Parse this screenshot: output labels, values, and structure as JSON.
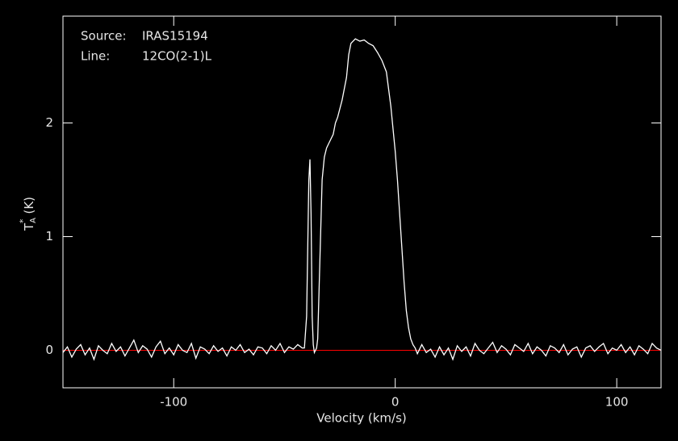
{
  "chart_data": {
    "type": "line",
    "source_label": "Source:",
    "source": "IRAS15194",
    "line_label": "Line:",
    "line": "12CO(2-1)L",
    "xlabel": "Velocity (km/s)",
    "ylabel": {
      "symbol": "T",
      "subscript": "A",
      "superscript": "*",
      "unit": "(K)"
    },
    "xlim": [
      -150,
      120
    ],
    "ylim": [
      -0.33,
      2.94
    ],
    "xticks": [
      -100,
      0,
      100
    ],
    "yticks": [
      0,
      1,
      2
    ],
    "baseline": 0,
    "baseline_color": "#ff0000",
    "background": "#000000",
    "x": [
      -150,
      -148,
      -146,
      -144,
      -142,
      -140,
      -138,
      -136,
      -134,
      -132,
      -130,
      -128,
      -126,
      -124,
      -122,
      -120,
      -118,
      -116,
      -114,
      -112,
      -110,
      -108,
      -106,
      -104,
      -102,
      -100,
      -98,
      -96,
      -94,
      -92,
      -90,
      -88,
      -86,
      -84,
      -82,
      -80,
      -78,
      -76,
      -74,
      -72,
      -70,
      -68,
      -66,
      -64,
      -62,
      -60,
      -58,
      -56,
      -54,
      -52,
      -50,
      -48,
      -46,
      -44,
      -42,
      -41,
      -40,
      -39.5,
      -39,
      -38.5,
      -38,
      -37.5,
      -37,
      -36.5,
      -36,
      -35.5,
      -35,
      -34,
      -33,
      -32,
      -31,
      -30,
      -28,
      -27,
      -26,
      -24,
      -22,
      -21,
      -20,
      -18,
      -16,
      -14,
      -12,
      -10,
      -8,
      -6,
      -4,
      -3,
      -2,
      -1,
      0,
      1,
      2,
      3,
      4,
      5,
      6,
      7,
      8,
      9,
      10,
      12,
      14,
      16,
      18,
      20,
      22,
      24,
      26,
      28,
      30,
      32,
      34,
      36,
      38,
      40,
      42,
      44,
      46,
      48,
      50,
      52,
      54,
      56,
      58,
      60,
      62,
      64,
      66,
      68,
      70,
      72,
      74,
      76,
      78,
      80,
      82,
      84,
      86,
      88,
      90,
      92,
      94,
      96,
      98,
      100,
      102,
      104,
      106,
      108,
      110,
      112,
      114,
      116,
      118,
      120
    ],
    "series": [
      {
        "name": "IRAS15194",
        "color": "#ffffff",
        "values": [
          -0.02,
          0.03,
          -0.06,
          0.01,
          0.05,
          -0.04,
          0.02,
          -0.08,
          0.04,
          0.0,
          -0.03,
          0.06,
          -0.01,
          0.03,
          -0.05,
          0.02,
          0.09,
          -0.02,
          0.04,
          0.01,
          -0.06,
          0.03,
          0.08,
          -0.03,
          0.02,
          -0.04,
          0.05,
          0.0,
          -0.02,
          0.06,
          -0.07,
          0.03,
          0.01,
          -0.03,
          0.04,
          -0.01,
          0.02,
          -0.05,
          0.03,
          0.0,
          0.05,
          -0.02,
          0.01,
          -0.04,
          0.03,
          0.02,
          -0.03,
          0.04,
          0.0,
          0.06,
          -0.02,
          0.03,
          0.01,
          0.05,
          0.02,
          0.02,
          0.3,
          0.9,
          1.5,
          1.68,
          1.2,
          0.3,
          0.05,
          -0.02,
          0.0,
          0.02,
          0.1,
          0.8,
          1.5,
          1.7,
          1.78,
          1.82,
          1.9,
          2.0,
          2.05,
          2.2,
          2.4,
          2.6,
          2.7,
          2.74,
          2.72,
          2.73,
          2.7,
          2.68,
          2.62,
          2.55,
          2.45,
          2.3,
          2.15,
          1.95,
          1.75,
          1.5,
          1.2,
          0.9,
          0.6,
          0.35,
          0.2,
          0.1,
          0.05,
          0.02,
          -0.03,
          0.05,
          -0.02,
          0.01,
          -0.06,
          0.03,
          -0.04,
          0.02,
          -0.08,
          0.04,
          -0.01,
          0.03,
          -0.05,
          0.06,
          0.0,
          -0.03,
          0.02,
          0.07,
          -0.02,
          0.04,
          0.01,
          -0.04,
          0.05,
          0.02,
          -0.01,
          0.06,
          -0.03,
          0.03,
          0.0,
          -0.05,
          0.04,
          0.02,
          -0.02,
          0.05,
          -0.04,
          0.01,
          0.03,
          -0.06,
          0.02,
          0.04,
          -0.01,
          0.03,
          0.06,
          -0.03,
          0.02,
          0.0,
          0.05,
          -0.02,
          0.03,
          -0.04,
          0.04,
          0.01,
          -0.03,
          0.06,
          0.02,
          0.0
        ]
      }
    ]
  }
}
